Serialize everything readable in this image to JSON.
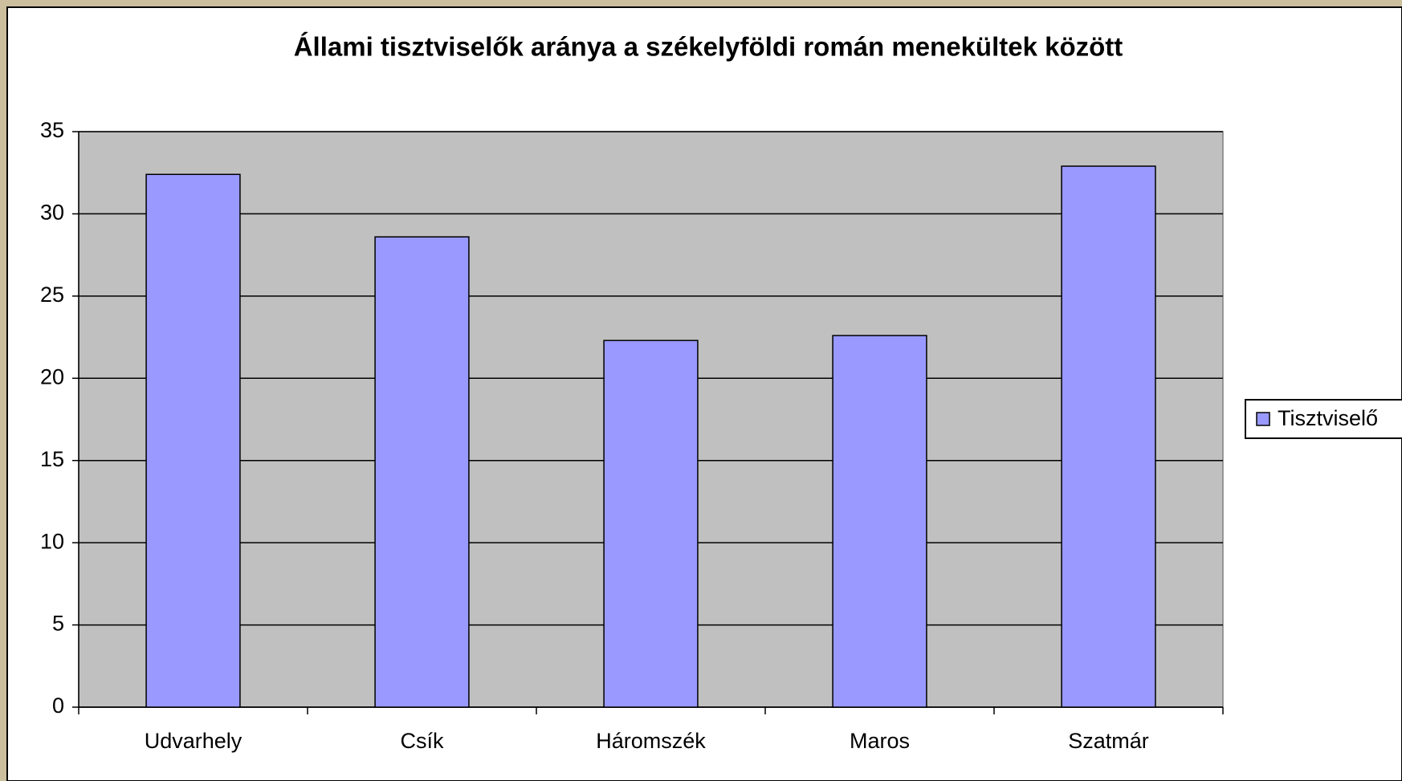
{
  "chart_data": {
    "type": "bar",
    "title": "Állami tisztviselők aránya a székelyföldi román menekültek között",
    "categories": [
      "Udvarhely",
      "Csík",
      "Háromszék",
      "Maros",
      "Szatmár"
    ],
    "series": [
      {
        "name": "Tisztviselő",
        "color": "#9999ff",
        "values": [
          32.4,
          28.6,
          22.3,
          22.6,
          32.9
        ]
      }
    ],
    "ylim": [
      0,
      35
    ],
    "yticks": [
      0,
      5,
      10,
      15,
      20,
      25,
      30,
      35
    ],
    "grid": true,
    "legend": "right",
    "plot_background": "#c0c0c0"
  }
}
